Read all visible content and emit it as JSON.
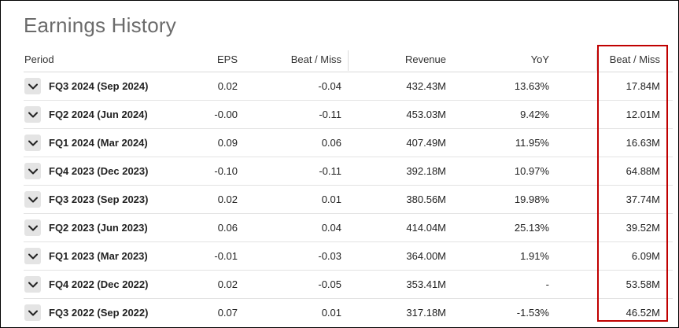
{
  "title": "Earnings History",
  "columns": {
    "period": "Period",
    "eps": "EPS",
    "eps_beat_miss": "Beat / Miss",
    "revenue": "Revenue",
    "yoy": "YoY",
    "rev_beat_miss": "Beat / Miss"
  },
  "colors": {
    "positive": "#2e8b3a",
    "negative": "#c0392b",
    "highlight_box": "#c00000"
  },
  "rows": [
    {
      "period": "FQ3 2024 (Sep 2024)",
      "eps": "0.02",
      "eps_beat_miss": "-0.04",
      "eps_bm_sign": "neg",
      "revenue": "432.43M",
      "yoy": "13.63%",
      "rev_beat_miss": "17.84M"
    },
    {
      "period": "FQ2 2024 (Jun 2024)",
      "eps": "-0.00",
      "eps_beat_miss": "-0.11",
      "eps_bm_sign": "neg",
      "revenue": "453.03M",
      "yoy": "9.42%",
      "rev_beat_miss": "12.01M"
    },
    {
      "period": "FQ1 2024 (Mar 2024)",
      "eps": "0.09",
      "eps_beat_miss": "0.06",
      "eps_bm_sign": "pos",
      "revenue": "407.49M",
      "yoy": "11.95%",
      "rev_beat_miss": "16.63M"
    },
    {
      "period": "FQ4 2023 (Dec 2023)",
      "eps": "-0.10",
      "eps_beat_miss": "-0.11",
      "eps_bm_sign": "neg",
      "revenue": "392.18M",
      "yoy": "10.97%",
      "rev_beat_miss": "64.88M"
    },
    {
      "period": "FQ3 2023 (Sep 2023)",
      "eps": "0.02",
      "eps_beat_miss": "0.01",
      "eps_bm_sign": "pos",
      "revenue": "380.56M",
      "yoy": "19.98%",
      "rev_beat_miss": "37.74M"
    },
    {
      "period": "FQ2 2023 (Jun 2023)",
      "eps": "0.06",
      "eps_beat_miss": "0.04",
      "eps_bm_sign": "pos",
      "revenue": "414.04M",
      "yoy": "25.13%",
      "rev_beat_miss": "39.52M"
    },
    {
      "period": "FQ1 2023 (Mar 2023)",
      "eps": "-0.01",
      "eps_beat_miss": "-0.03",
      "eps_bm_sign": "neg",
      "revenue": "364.00M",
      "yoy": "1.91%",
      "rev_beat_miss": "6.09M"
    },
    {
      "period": "FQ4 2022 (Dec 2022)",
      "eps": "0.02",
      "eps_beat_miss": "-0.05",
      "eps_bm_sign": "neg",
      "revenue": "353.41M",
      "yoy": "-",
      "rev_beat_miss": "53.58M"
    },
    {
      "period": "FQ3 2022 (Sep 2022)",
      "eps": "0.07",
      "eps_beat_miss": "0.01",
      "eps_bm_sign": "pos",
      "revenue": "317.18M",
      "yoy": "-1.53%",
      "rev_beat_miss": "46.52M"
    }
  ]
}
